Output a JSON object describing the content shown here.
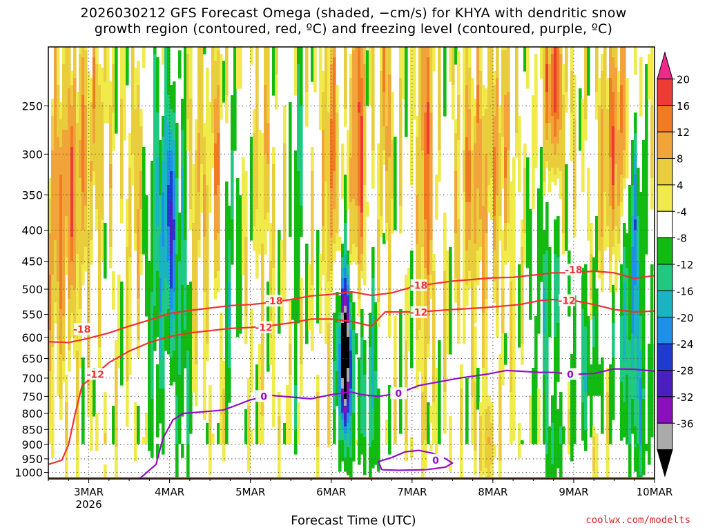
{
  "title": {
    "line1": "2026030212 GFS Forecast Omega (shaded, −cm/s) for KHYA with dendritic snow",
    "line2": "growth region (contoured, red, ºC) and freezing level (contoured, purple, ºC)"
  },
  "credit": "coolwx.com/modelts",
  "chart_data": {
    "type": "heatmap",
    "xlabel": "Forecast Time (UTC)",
    "ylabel": "",
    "x_ticks": [
      {
        "label": "3MAR",
        "sublabel": "2026",
        "hours": 12
      },
      {
        "label": "4MAR",
        "sublabel": "",
        "hours": 36
      },
      {
        "label": "5MAR",
        "sublabel": "",
        "hours": 60
      },
      {
        "label": "6MAR",
        "sublabel": "",
        "hours": 84
      },
      {
        "label": "7MAR",
        "sublabel": "",
        "hours": 108
      },
      {
        "label": "8MAR",
        "sublabel": "",
        "hours": 132
      },
      {
        "label": "9MAR",
        "sublabel": "",
        "hours": 156
      },
      {
        "label": "10MAR",
        "sublabel": "",
        "hours": 180
      }
    ],
    "xlim_hours": [
      0,
      180
    ],
    "y_ticks": [
      250,
      300,
      350,
      400,
      450,
      500,
      550,
      600,
      650,
      700,
      750,
      800,
      850,
      900,
      950,
      1000
    ],
    "ylim": [
      200,
      1025
    ],
    "y_scale": "log pressure",
    "grid": true,
    "colorbar": {
      "labels": [
        "20",
        "16",
        "12",
        "8",
        "4",
        "-4",
        "-8",
        "-12",
        "-16",
        "-20",
        "-24",
        "-28",
        "-32",
        "-36"
      ],
      "bins": [
        {
          "color": "#ec2a8b",
          "min": 20,
          "max": null
        },
        {
          "color": "#ee3b33",
          "min": 16,
          "max": 20
        },
        {
          "color": "#f07b22",
          "min": 12,
          "max": 16
        },
        {
          "color": "#f0a43a",
          "min": 8,
          "max": 12
        },
        {
          "color": "#e9cd3c",
          "min": 4,
          "max": 8
        },
        {
          "color": "#f0ea4a",
          "min": 2,
          "max": 4
        },
        {
          "color": "#ffffff",
          "min": -4,
          "max": 2
        },
        {
          "color": "#12bb12",
          "min": -8,
          "max": -4
        },
        {
          "color": "#20c880",
          "min": -12,
          "max": -8
        },
        {
          "color": "#18b4c2",
          "min": -16,
          "max": -12
        },
        {
          "color": "#1e90e8",
          "min": -20,
          "max": -16
        },
        {
          "color": "#1e3ad2",
          "min": -24,
          "max": -20
        },
        {
          "color": "#4a1ec0",
          "min": -28,
          "max": -24
        },
        {
          "color": "#8a10bc",
          "min": -32,
          "max": -28
        },
        {
          "color": "#aaaaaa",
          "min": -36,
          "max": -32
        },
        {
          "color": "#000000",
          "min": null,
          "max": -36
        }
      ]
    },
    "contours": [
      {
        "level": "-18",
        "color": "#ee3333",
        "points": [
          [
            0,
            610
          ],
          [
            6,
            612
          ],
          [
            12,
            602
          ],
          [
            18,
            590
          ],
          [
            24,
            575
          ],
          [
            30,
            562
          ],
          [
            36,
            548
          ],
          [
            42,
            542
          ],
          [
            48,
            537
          ],
          [
            54,
            532
          ],
          [
            60,
            530
          ],
          [
            66,
            526
          ],
          [
            72,
            520
          ],
          [
            78,
            513
          ],
          [
            84,
            510
          ],
          [
            90,
            505
          ],
          [
            96,
            512
          ],
          [
            102,
            507
          ],
          [
            108,
            496
          ],
          [
            114,
            490
          ],
          [
            120,
            485
          ],
          [
            126,
            482
          ],
          [
            132,
            479
          ],
          [
            138,
            478
          ],
          [
            144,
            474
          ],
          [
            150,
            470
          ],
          [
            156,
            470
          ],
          [
            162,
            467
          ],
          [
            168,
            470
          ],
          [
            174,
            480
          ],
          [
            180,
            475
          ]
        ],
        "labels": [
          [
            10,
            582
          ],
          [
            67,
            523
          ],
          [
            110,
            493
          ],
          [
            156,
            465
          ]
        ]
      },
      {
        "level": "-12",
        "color": "#ee3333",
        "points": [
          [
            0,
            970
          ],
          [
            4,
            955
          ],
          [
            6,
            900
          ],
          [
            8,
            800
          ],
          [
            10,
            720
          ],
          [
            14,
            690
          ],
          [
            18,
            660
          ],
          [
            24,
            632
          ],
          [
            30,
            612
          ],
          [
            36,
            598
          ],
          [
            42,
            590
          ],
          [
            48,
            585
          ],
          [
            54,
            580
          ],
          [
            60,
            578
          ],
          [
            66,
            574
          ],
          [
            72,
            568
          ],
          [
            78,
            560
          ],
          [
            84,
            560
          ],
          [
            90,
            565
          ],
          [
            96,
            575
          ],
          [
            100,
            545
          ],
          [
            104,
            545
          ],
          [
            110,
            545
          ],
          [
            120,
            540
          ],
          [
            130,
            536
          ],
          [
            140,
            530
          ],
          [
            146,
            522
          ],
          [
            150,
            520
          ],
          [
            156,
            522
          ],
          [
            162,
            530
          ],
          [
            168,
            540
          ],
          [
            174,
            545
          ],
          [
            180,
            543
          ]
        ],
        "labels": [
          [
            14,
            690
          ],
          [
            64,
            578
          ],
          [
            110,
            546
          ],
          [
            154,
            522
          ]
        ]
      },
      {
        "level": "0",
        "color": "#9010c8",
        "points": [
          [
            27,
            1025
          ],
          [
            32,
            970
          ],
          [
            34,
            880
          ],
          [
            37,
            820
          ],
          [
            40,
            800
          ],
          [
            46,
            795
          ],
          [
            52,
            790
          ],
          [
            56,
            775
          ],
          [
            60,
            760
          ],
          [
            66,
            747
          ],
          [
            72,
            752
          ],
          [
            78,
            757
          ],
          [
            84,
            745
          ],
          [
            88,
            740
          ],
          [
            90,
            738
          ],
          [
            93,
            745
          ],
          [
            98,
            750
          ],
          [
            104,
            742
          ],
          [
            110,
            720
          ],
          [
            116,
            710
          ],
          [
            122,
            700
          ],
          [
            126,
            695
          ],
          [
            130,
            690
          ],
          [
            136,
            680
          ],
          [
            140,
            682
          ],
          [
            146,
            685
          ],
          [
            150,
            685
          ],
          [
            156,
            690
          ],
          [
            162,
            688
          ],
          [
            168,
            676
          ],
          [
            174,
            677
          ],
          [
            180,
            682
          ]
        ],
        "labels": [
          [
            64,
            750
          ],
          [
            104,
            742
          ],
          [
            155,
            690
          ]
        ]
      },
      {
        "level": "0",
        "color": "#9010c8",
        "points": [
          [
            99,
            990
          ],
          [
            98,
            960
          ],
          [
            102,
            945
          ],
          [
            106,
            925
          ],
          [
            110,
            920
          ],
          [
            114,
            930
          ],
          [
            118,
            950
          ],
          [
            120,
            965
          ],
          [
            118,
            980
          ],
          [
            112,
            990
          ],
          [
            104,
            992
          ],
          [
            99,
            990
          ]
        ],
        "labels": [
          [
            115,
            955
          ]
        ]
      }
    ],
    "terrain": {
      "color": "#a0522d",
      "pressure": 1018
    }
  }
}
